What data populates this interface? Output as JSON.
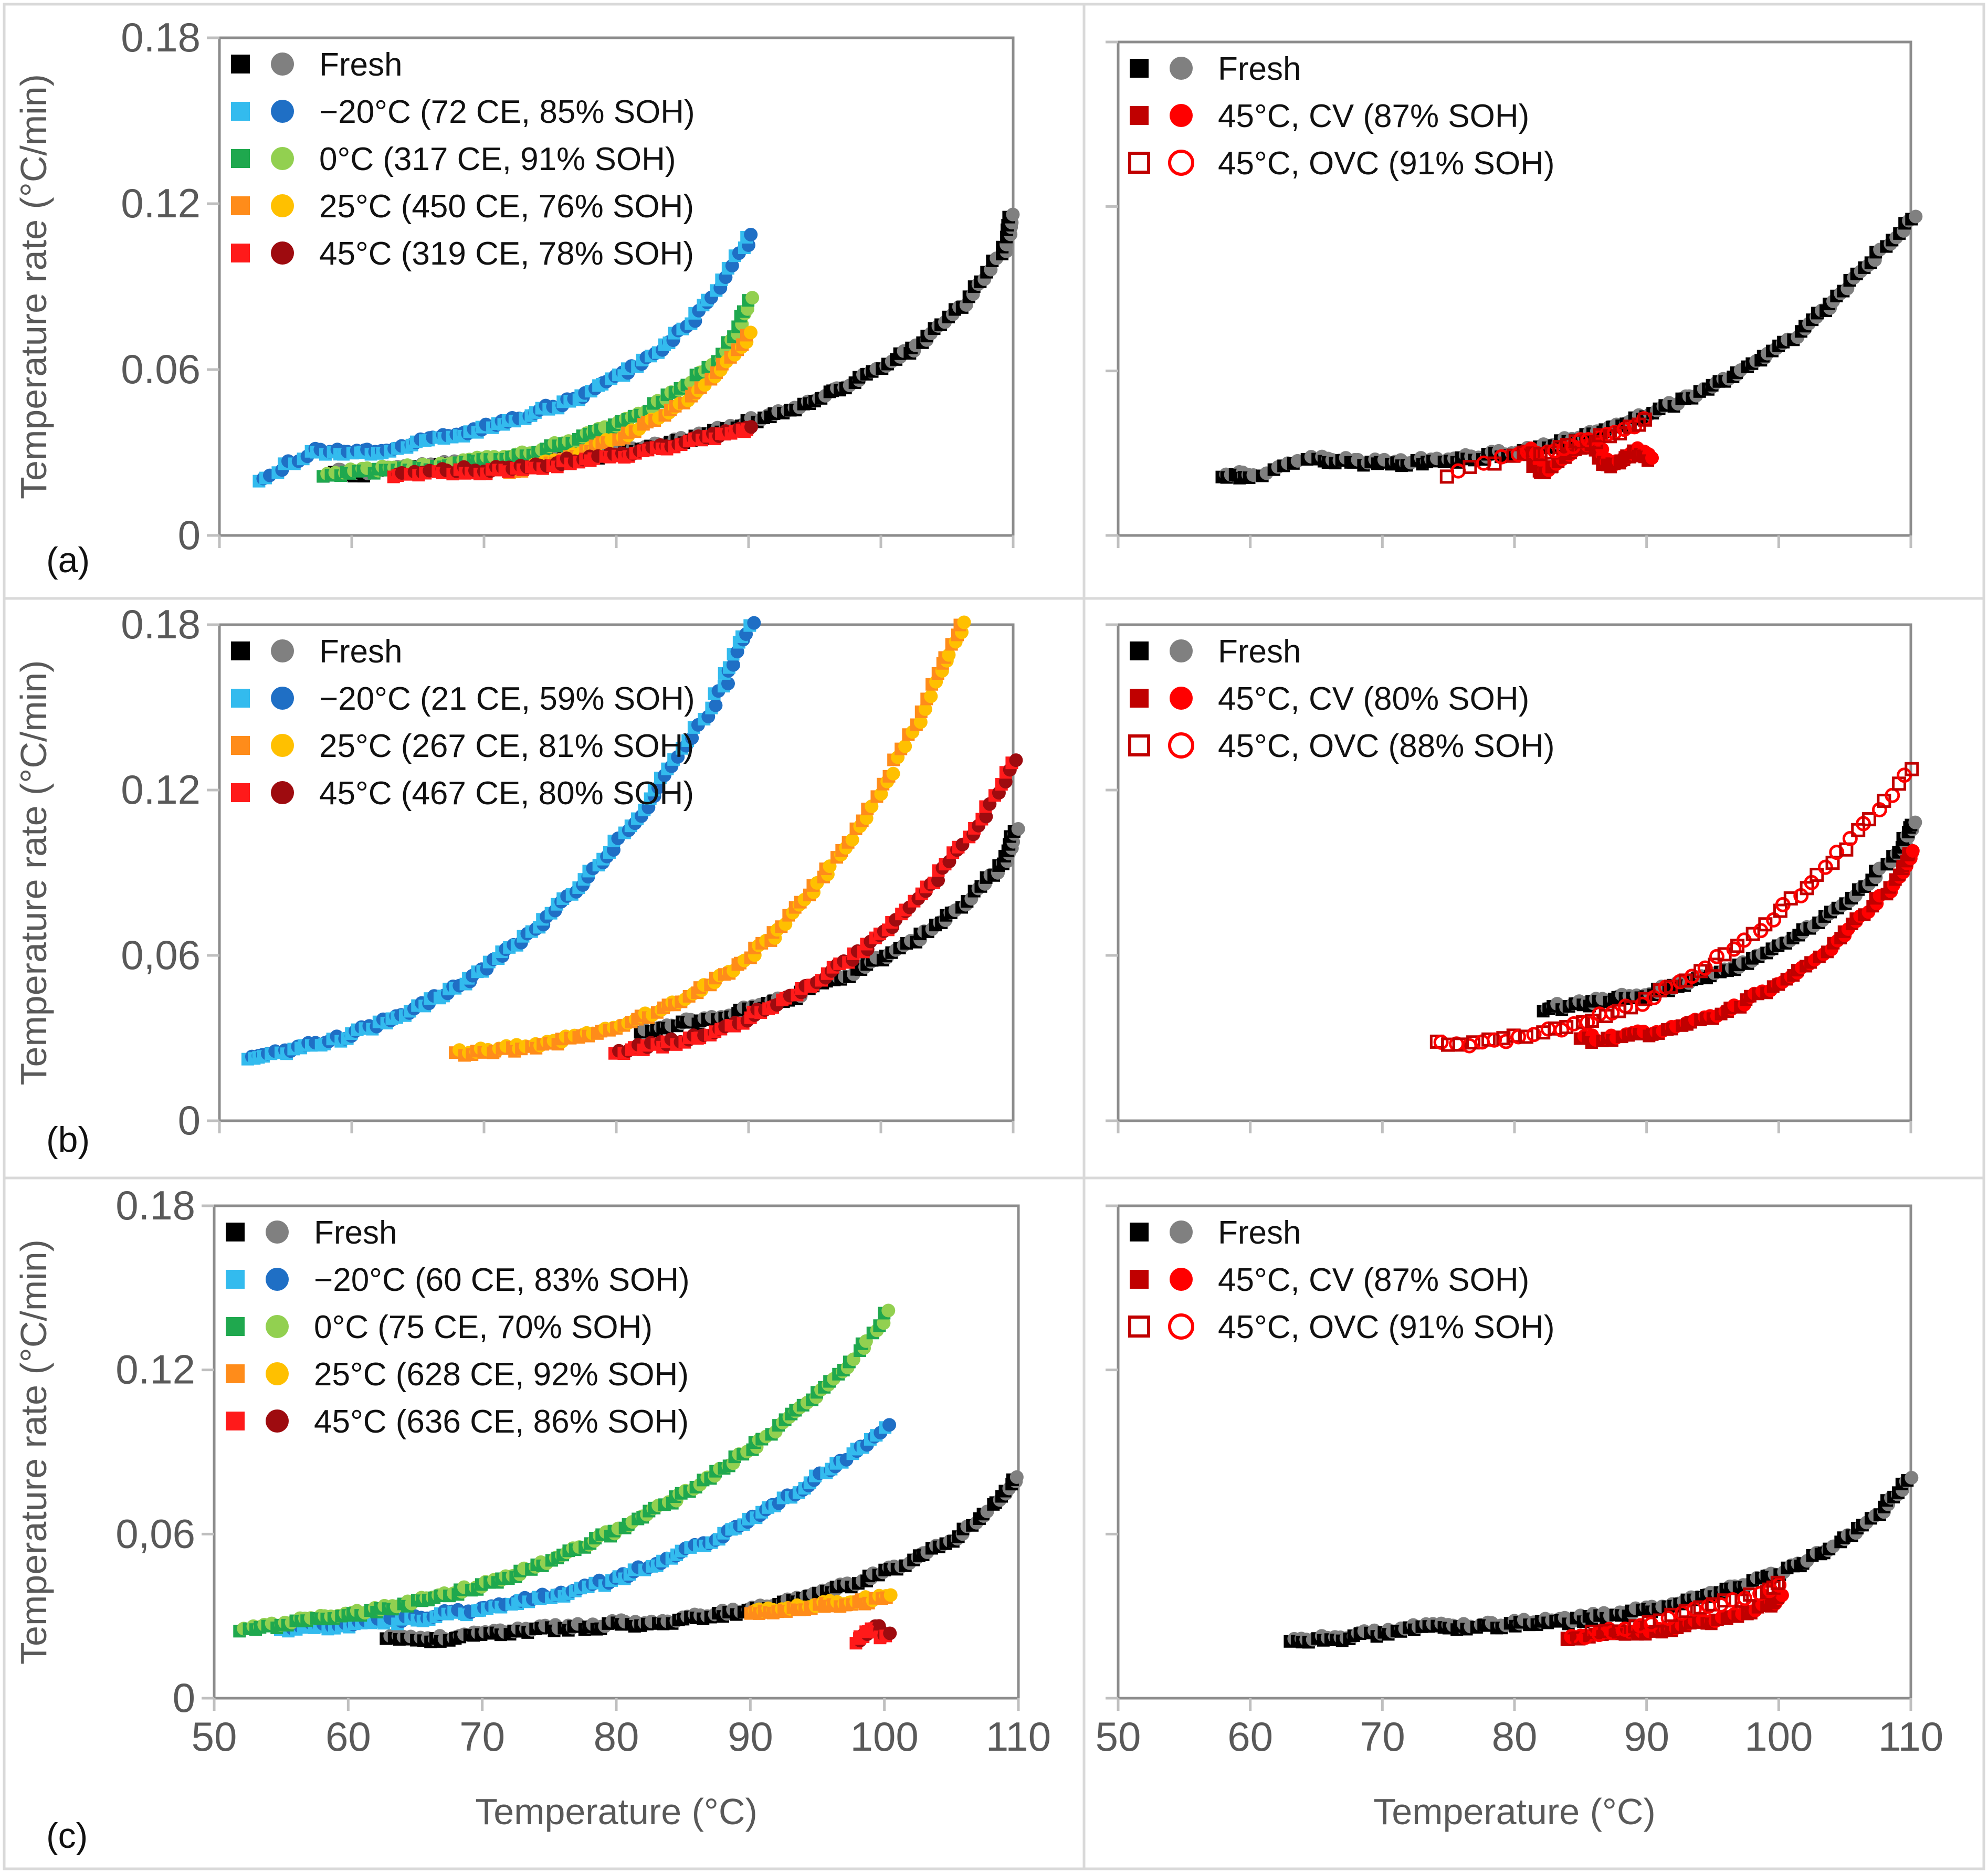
{
  "figure": {
    "xlabel": "Temperature (°C)",
    "ylabel": "Temperature rate (°C/min)"
  },
  "chart_data": [
    {
      "id": "a-left",
      "type": "scatter",
      "panel_label": "(a)",
      "xlim": [
        50,
        110
      ],
      "ylim": [
        0,
        0.18
      ],
      "x_ticks": [
        50,
        60,
        70,
        80,
        90,
        100,
        110
      ],
      "y_ticks": [
        0,
        0.06,
        0.12,
        0.18
      ],
      "y_tick_labels": [
        "0",
        "0.06",
        "0.12",
        "0.18"
      ],
      "show_x_tick_labels": false,
      "show_y_tick_labels": true,
      "xlabel": "",
      "ylabel": "Temperature rate (°C/min)",
      "legend": [
        "Fresh",
        "−20°C (72 CE, 85% SOH)",
        "0°C (317 CE, 91% SOH)",
        "25°C (450 CE, 76% SOH)",
        "45°C (319 CE, 78% SOH)"
      ],
      "series": [
        {
          "name": "Fresh",
          "sq_color": "#000000",
          "ci_color": "#808080",
          "marker": "filled",
          "x": [
            58,
            61,
            64,
            67,
            70,
            73,
            76,
            79,
            82,
            85,
            88,
            91,
            94,
            97,
            100,
            103,
            106,
            109,
            110
          ],
          "y": [
            0.022,
            0.022,
            0.024,
            0.025,
            0.026,
            0.027,
            0.028,
            0.029,
            0.031,
            0.034,
            0.038,
            0.042,
            0.047,
            0.053,
            0.06,
            0.07,
            0.083,
            0.102,
            0.118
          ]
        },
        {
          "name": "−20°C (72 CE, 85% SOH)",
          "sq_color": "#33bbee",
          "ci_color": "#1f6fc5",
          "marker": "filled",
          "x": [
            53,
            57,
            60,
            63,
            66,
            69,
            72,
            75,
            78,
            81,
            84,
            87,
            90
          ],
          "y": [
            0.02,
            0.03,
            0.029,
            0.031,
            0.034,
            0.037,
            0.041,
            0.046,
            0.052,
            0.06,
            0.07,
            0.085,
            0.108
          ]
        },
        {
          "name": "0°C (317 CE, 91% SOH)",
          "sq_color": "#1fa84e",
          "ci_color": "#92d050",
          "marker": "filled",
          "x": [
            58,
            61,
            64,
            67,
            70,
            73,
            76,
            79,
            82,
            85,
            88,
            90
          ],
          "y": [
            0.022,
            0.023,
            0.024,
            0.025,
            0.027,
            0.029,
            0.033,
            0.038,
            0.044,
            0.053,
            0.066,
            0.085
          ]
        },
        {
          "name": "25°C (450 CE, 76% SOH)",
          "sq_color": "#ff8c1a",
          "ci_color": "#ffc000",
          "marker": "filled",
          "x": [
            72,
            75,
            78,
            81,
            84,
            87,
            90
          ],
          "y": [
            0.023,
            0.026,
            0.031,
            0.037,
            0.045,
            0.056,
            0.072
          ]
        },
        {
          "name": "45°C (319 CE, 78% SOH)",
          "sq_color": "#ff1a1a",
          "ci_color": "#9e0b0f",
          "marker": "filled",
          "x": [
            63,
            67,
            70,
            73,
            76,
            79,
            82,
            85,
            88,
            90
          ],
          "y": [
            0.022,
            0.023,
            0.023,
            0.024,
            0.026,
            0.028,
            0.03,
            0.033,
            0.036,
            0.038
          ]
        }
      ]
    },
    {
      "id": "a-right",
      "type": "scatter",
      "panel_label": "",
      "xlim": [
        50,
        110
      ],
      "ylim": [
        0,
        0.18
      ],
      "x_ticks": [
        50,
        60,
        70,
        80,
        90,
        100,
        110
      ],
      "y_ticks": [
        0,
        0.06,
        0.12,
        0.18
      ],
      "y_tick_labels": [
        "0",
        "0.06",
        "0.12",
        "0.18"
      ],
      "show_x_tick_labels": false,
      "show_y_tick_labels": false,
      "xlabel": "",
      "ylabel": "",
      "legend": [
        "Fresh",
        "45°C, CV (87% SOH)",
        "45°C, OVC (91% SOH)"
      ],
      "series": [
        {
          "name": "Fresh",
          "sq_color": "#000000",
          "ci_color": "#808080",
          "marker": "filled",
          "x": [
            58,
            60,
            65,
            68,
            71,
            74,
            77,
            80,
            83,
            86,
            89,
            92,
            95,
            98,
            101,
            104,
            107,
            110
          ],
          "y": [
            0.022,
            0.021,
            0.028,
            0.026,
            0.026,
            0.027,
            0.028,
            0.03,
            0.033,
            0.037,
            0.042,
            0.048,
            0.054,
            0.062,
            0.072,
            0.085,
            0.1,
            0.116
          ]
        },
        {
          "name": "45°C, CV (87% SOH)",
          "sq_color": "#c00000",
          "ci_color": "#ff0000",
          "marker": "filled",
          "x": [
            81,
            82,
            84,
            86,
            87,
            88,
            89,
            90
          ],
          "y": [
            0.03,
            0.022,
            0.03,
            0.033,
            0.025,
            0.027,
            0.03,
            0.028
          ]
        },
        {
          "name": "45°C, OVC (91% SOH)",
          "sq_color": "#c00000",
          "ci_color": "#ff0000",
          "marker": "open",
          "x": [
            75,
            80,
            82,
            84,
            86,
            88,
            90
          ],
          "y": [
            0.022,
            0.029,
            0.03,
            0.033,
            0.035,
            0.038,
            0.043
          ]
        }
      ]
    },
    {
      "id": "b-left",
      "type": "scatter",
      "panel_label": "(b)",
      "xlim": [
        50,
        110
      ],
      "ylim": [
        0,
        0.18
      ],
      "x_ticks": [
        50,
        60,
        70,
        80,
        90,
        100,
        110
      ],
      "y_ticks": [
        0,
        0.06,
        0.12,
        0.18
      ],
      "y_tick_labels": [
        "0",
        "0,06",
        "0.12",
        "0.18"
      ],
      "show_x_tick_labels": false,
      "show_y_tick_labels": true,
      "xlabel": "",
      "ylabel": "Temperature rate (°C/min)",
      "legend": [
        "Fresh",
        "−20°C (21 CE, 59% SOH)",
        "25°C (267 CE, 81% SOH)",
        "45°C (467 CE, 80% SOH)"
      ],
      "series": [
        {
          "name": "Fresh",
          "sq_color": "#000000",
          "ci_color": "#808080",
          "marker": "filled",
          "x": [
            82,
            85,
            88,
            91,
            94,
            97,
            100,
            103,
            106,
            109,
            110
          ],
          "y": [
            0.033,
            0.035,
            0.038,
            0.041,
            0.046,
            0.052,
            0.059,
            0.067,
            0.078,
            0.092,
            0.105
          ]
        },
        {
          "name": "−20°C (21 CE, 59% SOH)",
          "sq_color": "#33bbee",
          "ci_color": "#1f6fc5",
          "marker": "filled",
          "x": [
            52,
            55,
            58,
            61,
            64,
            67,
            70,
            73,
            76,
            79,
            82,
            85,
            88,
            90
          ],
          "y": [
            0.023,
            0.025,
            0.028,
            0.033,
            0.039,
            0.046,
            0.055,
            0.066,
            0.08,
            0.095,
            0.113,
            0.135,
            0.158,
            0.18
          ]
        },
        {
          "name": "25°C (267 CE, 81% SOH)",
          "sq_color": "#ff8c1a",
          "ci_color": "#ffc000",
          "marker": "filled",
          "x": [
            68,
            71,
            74,
            77,
            80,
            83,
            86,
            89,
            92,
            95,
            98,
            101,
            104,
            106
          ],
          "y": [
            0.024,
            0.025,
            0.027,
            0.03,
            0.034,
            0.039,
            0.046,
            0.056,
            0.068,
            0.085,
            0.105,
            0.13,
            0.158,
            0.18
          ]
        },
        {
          "name": "45°C (467 CE, 80% SOH)",
          "sq_color": "#ff1a1a",
          "ci_color": "#9e0b0f",
          "marker": "filled",
          "x": [
            80,
            83,
            86,
            89,
            92,
            95,
            98,
            101,
            104,
            107,
            110
          ],
          "y": [
            0.025,
            0.027,
            0.03,
            0.035,
            0.042,
            0.05,
            0.06,
            0.072,
            0.087,
            0.106,
            0.13
          ]
        }
      ]
    },
    {
      "id": "b-right",
      "type": "scatter",
      "panel_label": "",
      "xlim": [
        50,
        110
      ],
      "ylim": [
        0,
        0.18
      ],
      "x_ticks": [
        50,
        60,
        70,
        80,
        90,
        100,
        110
      ],
      "y_ticks": [
        0,
        0.06,
        0.12,
        0.18
      ],
      "y_tick_labels": [
        "0",
        "0,06",
        "0.12",
        "0.18"
      ],
      "show_x_tick_labels": false,
      "show_y_tick_labels": false,
      "xlabel": "",
      "ylabel": "",
      "legend": [
        "Fresh",
        "45°C, CV (80% SOH)",
        "45°C, OVC (88% SOH)"
      ],
      "series": [
        {
          "name": "Fresh",
          "sq_color": "#000000",
          "ci_color": "#808080",
          "marker": "filled",
          "x": [
            82,
            85,
            88,
            91,
            94,
            97,
            100,
            103,
            106,
            109,
            110
          ],
          "y": [
            0.04,
            0.042,
            0.044,
            0.047,
            0.051,
            0.056,
            0.063,
            0.072,
            0.083,
            0.098,
            0.108
          ]
        },
        {
          "name": "45°C, CV (80% SOH)",
          "sq_color": "#c00000",
          "ci_color": "#ff0000",
          "marker": "filled",
          "x": [
            85,
            88,
            91,
            94,
            97,
            100,
            103,
            106,
            109,
            110
          ],
          "y": [
            0.029,
            0.03,
            0.032,
            0.036,
            0.042,
            0.05,
            0.06,
            0.073,
            0.088,
            0.097
          ]
        },
        {
          "name": "45°C, OVC (88% SOH)",
          "sq_color": "#c00000",
          "ci_color": "#ff0000",
          "marker": "open",
          "x": [
            74,
            77,
            80,
            83,
            86,
            89,
            92,
            95,
            98,
            101,
            104,
            107,
            110
          ],
          "y": [
            0.028,
            0.028,
            0.03,
            0.033,
            0.037,
            0.042,
            0.049,
            0.057,
            0.067,
            0.08,
            0.094,
            0.11,
            0.128
          ]
        }
      ]
    },
    {
      "id": "c-left",
      "type": "scatter",
      "panel_label": "(c)",
      "xlim": [
        50,
        110
      ],
      "ylim": [
        0,
        0.18
      ],
      "x_ticks": [
        50,
        60,
        70,
        80,
        90,
        100,
        110
      ],
      "y_ticks": [
        0,
        0.06,
        0.12,
        0.18
      ],
      "y_tick_labels": [
        "0",
        "0,06",
        "0.12",
        "0.18"
      ],
      "show_x_tick_labels": true,
      "show_y_tick_labels": true,
      "xlabel": "Temperature (°C)",
      "ylabel": "Temperature rate (°C/min)",
      "legend": [
        "Fresh",
        "−20°C (60 CE, 83% SOH)",
        "0°C (75 CE, 70% SOH)",
        "25°C (628 CE, 92% SOH)",
        "45°C (636 CE, 86% SOH)"
      ],
      "series": [
        {
          "name": "Fresh",
          "sq_color": "#000000",
          "ci_color": "#808080",
          "marker": "filled",
          "x": [
            63,
            66,
            69,
            72,
            75,
            78,
            81,
            84,
            87,
            90,
            93,
            96,
            99,
            102,
            105,
            108,
            110
          ],
          "y": [
            0.021,
            0.021,
            0.023,
            0.024,
            0.025,
            0.026,
            0.027,
            0.028,
            0.03,
            0.032,
            0.035,
            0.039,
            0.044,
            0.05,
            0.058,
            0.07,
            0.082
          ]
        },
        {
          "name": "−20°C (60 CE, 83% SOH)",
          "sq_color": "#33bbee",
          "ci_color": "#1f6fc5",
          "marker": "filled",
          "x": [
            55,
            58,
            61,
            64,
            67,
            70,
            73,
            76,
            79,
            82,
            85,
            88,
            91,
            94,
            97,
            100
          ],
          "y": [
            0.025,
            0.026,
            0.027,
            0.028,
            0.03,
            0.032,
            0.035,
            0.038,
            0.042,
            0.047,
            0.053,
            0.06,
            0.068,
            0.077,
            0.087,
            0.098
          ]
        },
        {
          "name": "0°C (75 CE, 70% SOH)",
          "sq_color": "#1fa84e",
          "ci_color": "#92d050",
          "marker": "filled",
          "x": [
            52,
            55,
            58,
            61,
            64,
            67,
            70,
            73,
            76,
            79,
            82,
            85,
            88,
            91,
            94,
            97,
            100
          ],
          "y": [
            0.025,
            0.027,
            0.029,
            0.031,
            0.034,
            0.037,
            0.041,
            0.046,
            0.052,
            0.059,
            0.066,
            0.075,
            0.084,
            0.095,
            0.107,
            0.12,
            0.14
          ]
        },
        {
          "name": "25°C (628 CE, 92% SOH)",
          "sq_color": "#ff8c1a",
          "ci_color": "#ffc000",
          "marker": "filled",
          "x": [
            90,
            92,
            94,
            96,
            98,
            100
          ],
          "y": [
            0.031,
            0.032,
            0.033,
            0.034,
            0.035,
            0.036
          ]
        },
        {
          "name": "45°C (636 CE, 86% SOH)",
          "sq_color": "#ff1a1a",
          "ci_color": "#9e0b0f",
          "marker": "filled",
          "x": [
            98,
            99,
            100
          ],
          "y": [
            0.02,
            0.026,
            0.022
          ]
        }
      ]
    },
    {
      "id": "c-right",
      "type": "scatter",
      "panel_label": "",
      "xlim": [
        50,
        110
      ],
      "ylim": [
        0,
        0.18
      ],
      "x_ticks": [
        50,
        60,
        70,
        80,
        90,
        100,
        110
      ],
      "y_ticks": [
        0,
        0.06,
        0.12,
        0.18
      ],
      "y_tick_labels": [
        "0",
        "0,06",
        "0.12",
        "0.18"
      ],
      "show_x_tick_labels": true,
      "show_y_tick_labels": false,
      "xlabel": "Temperature (°C)",
      "ylabel": "",
      "legend": [
        "Fresh",
        "45°C, CV (87% SOH)",
        "45°C, OVC (91% SOH)"
      ],
      "series": [
        {
          "name": "Fresh",
          "sq_color": "#000000",
          "ci_color": "#808080",
          "marker": "filled",
          "x": [
            63,
            66,
            69,
            72,
            75,
            78,
            81,
            84,
            87,
            90,
            93,
            96,
            99,
            102,
            105,
            108,
            110
          ],
          "y": [
            0.021,
            0.021,
            0.023,
            0.025,
            0.026,
            0.026,
            0.027,
            0.028,
            0.03,
            0.032,
            0.035,
            0.039,
            0.044,
            0.05,
            0.058,
            0.07,
            0.082
          ]
        },
        {
          "name": "45°C, CV (87% SOH)",
          "sq_color": "#c00000",
          "ci_color": "#ff0000",
          "marker": "filled",
          "x": [
            84,
            87,
            90,
            93,
            96,
            99,
            100
          ],
          "y": [
            0.022,
            0.024,
            0.024,
            0.026,
            0.029,
            0.033,
            0.036
          ]
        },
        {
          "name": "45°C, OVC (91% SOH)",
          "sq_color": "#c00000",
          "ci_color": "#ff0000",
          "marker": "open",
          "x": [
            84,
            87,
            90,
            93,
            96,
            99,
            100
          ],
          "y": [
            0.022,
            0.024,
            0.027,
            0.031,
            0.035,
            0.039,
            0.042
          ]
        }
      ]
    }
  ]
}
